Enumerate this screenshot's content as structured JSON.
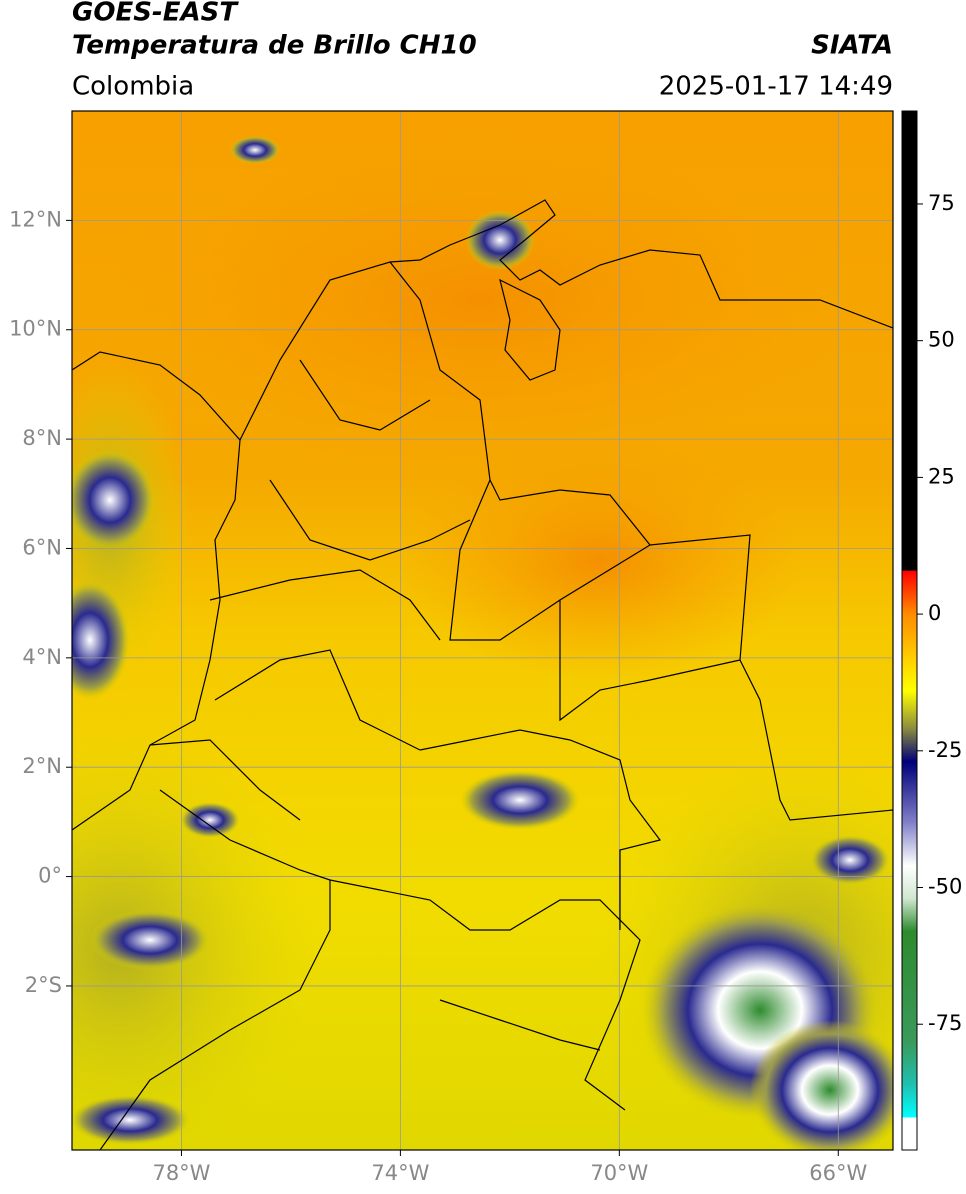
{
  "header": {
    "title": "GOES-EAST",
    "subtitle": "Temperatura de Brillo CH10",
    "source": "SIATA",
    "region": "Colombia",
    "datetime": "2025-01-17 14:49"
  },
  "map": {
    "xlim": [
      -80,
      -65
    ],
    "ylim": [
      -5,
      14
    ],
    "grid": true,
    "xticks": [
      {
        "value": -78,
        "label": "78°W"
      },
      {
        "value": -74,
        "label": "74°W"
      },
      {
        "value": -70,
        "label": "70°W"
      },
      {
        "value": -66,
        "label": "66°W"
      }
    ],
    "yticks": [
      {
        "value": 12,
        "label": "12°N"
      },
      {
        "value": 10,
        "label": "10°N"
      },
      {
        "value": 8,
        "label": "8°N"
      },
      {
        "value": 6,
        "label": "6°N"
      },
      {
        "value": 4,
        "label": "4°N"
      },
      {
        "value": 2,
        "label": "2°N"
      },
      {
        "value": 0,
        "label": "0°"
      },
      {
        "value": -2,
        "label": "2°S"
      }
    ]
  },
  "colorbar": {
    "clim": [
      -98,
      92
    ],
    "ticks": [
      75,
      50,
      25,
      0,
      -25,
      -50,
      -75
    ],
    "colormap": [
      {
        "value": 92,
        "color": "#000000"
      },
      {
        "value": 8,
        "color": "#000000"
      },
      {
        "value": 7.9,
        "color": "#ff0000"
      },
      {
        "value": 0,
        "color": "#ff8c00"
      },
      {
        "value": -14,
        "color": "#ffff00"
      },
      {
        "value": -21,
        "color": "#8a8a40"
      },
      {
        "value": -27,
        "color": "#00007a"
      },
      {
        "value": -38,
        "color": "#7f7fc8"
      },
      {
        "value": -46,
        "color": "#ffffff"
      },
      {
        "value": -52,
        "color": "#d0e8d0"
      },
      {
        "value": -58,
        "color": "#2e8b2e"
      },
      {
        "value": -78,
        "color": "#3a9a5a"
      },
      {
        "value": -86,
        "color": "#20c0b0"
      },
      {
        "value": -92,
        "color": "#00ffff"
      },
      {
        "value": -92.1,
        "color": "#ffffff"
      },
      {
        "value": -98,
        "color": "#ffffff"
      }
    ]
  }
}
